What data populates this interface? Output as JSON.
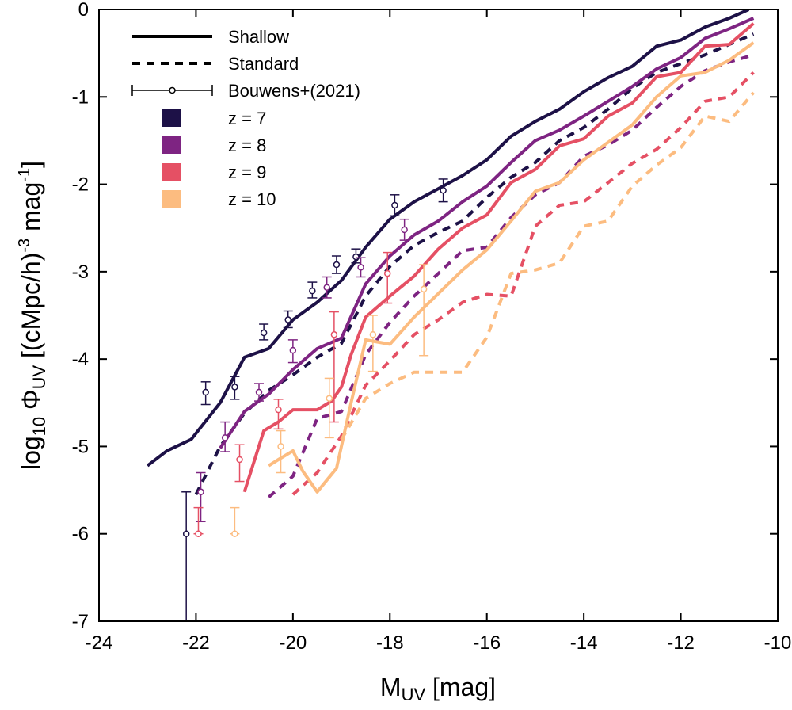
{
  "chart_data": {
    "type": "line",
    "xlabel": "M_UV [mag]",
    "xlabel_parts": {
      "base": "M",
      "sub": "UV",
      "rest": " [mag]"
    },
    "ylabel": "log10 Φ_UV [(cMpc/h)^-3 mag^-1]",
    "ylabel_parts": {
      "log": "log",
      "log_sub": "10",
      "phi": " Φ",
      "phi_sub": "UV",
      "paren": " [(cMpc/h)",
      "exp1": "-3",
      "mag": " mag",
      "exp2": "-1",
      "close": "]"
    },
    "xlim": [
      -24,
      -10
    ],
    "ylim": [
      -7,
      0
    ],
    "xticks": [
      -24,
      -22,
      -20,
      -18,
      -16,
      -14,
      -12,
      -10
    ],
    "yticks": [
      0,
      -1,
      -2,
      -3,
      -4,
      -5,
      -6,
      -7
    ],
    "grid": false,
    "legend": {
      "placement": "top-left",
      "styles": [
        {
          "label": "Shallow",
          "dash": "solid"
        },
        {
          "label": "Standard",
          "dash": "dashed"
        },
        {
          "label": "Bouwens+(2021)",
          "dash": "errorbar"
        }
      ],
      "redshifts": [
        {
          "label": "z = 7",
          "color": "#1d1147"
        },
        {
          "label": "z = 8",
          "color": "#7e2482"
        },
        {
          "label": "z = 9",
          "color": "#e55064"
        },
        {
          "label": "z = 10",
          "color": "#fcbc80"
        }
      ]
    },
    "series": [
      {
        "z": 7,
        "style": "shallow",
        "color": "#1d1147",
        "x": [
          -23,
          -22.6,
          -22.1,
          -21.5,
          -21,
          -20.5,
          -20,
          -19.5,
          -19,
          -18.5,
          -18,
          -17.5,
          -17,
          -16.5,
          -16,
          -15.5,
          -15,
          -14.5,
          -14,
          -13.5,
          -13,
          -12.5,
          -12,
          -11.5,
          -11,
          -10.6
        ],
        "y": [
          -5.22,
          -5.05,
          -4.92,
          -4.5,
          -3.98,
          -3.88,
          -3.55,
          -3.35,
          -3.1,
          -2.72,
          -2.4,
          -2.2,
          -2.05,
          -1.9,
          -1.72,
          -1.45,
          -1.28,
          -1.14,
          -0.94,
          -0.78,
          -0.65,
          -0.42,
          -0.35,
          -0.2,
          -0.1,
          0.0
        ]
      },
      {
        "z": 8,
        "style": "shallow",
        "color": "#7e2482",
        "x": [
          -21.5,
          -21,
          -20.5,
          -20,
          -19.5,
          -19,
          -18.5,
          -18,
          -17.5,
          -17,
          -16.5,
          -16,
          -15.5,
          -15,
          -14.5,
          -14,
          -13.5,
          -13,
          -12.5,
          -12,
          -11.5,
          -11,
          -10.5
        ],
        "y": [
          -5.02,
          -4.6,
          -4.4,
          -4.12,
          -3.88,
          -3.76,
          -3.14,
          -2.82,
          -2.58,
          -2.42,
          -2.2,
          -2.02,
          -1.75,
          -1.5,
          -1.38,
          -1.22,
          -1.05,
          -0.88,
          -0.68,
          -0.55,
          -0.33,
          -0.22,
          -0.1
        ]
      },
      {
        "z": 9,
        "style": "shallow",
        "color": "#e55064",
        "x": [
          -21,
          -20.6,
          -20.3,
          -20,
          -19.8,
          -19.5,
          -19.2,
          -19,
          -18.8,
          -18.5,
          -18,
          -17.5,
          -17,
          -16.5,
          -16,
          -15.5,
          -15,
          -14.5,
          -14,
          -13.5,
          -13,
          -12.5,
          -12,
          -11.5,
          -11,
          -10.5
        ],
        "y": [
          -5.52,
          -4.82,
          -4.72,
          -4.58,
          -4.58,
          -4.58,
          -4.48,
          -4.32,
          -3.95,
          -3.52,
          -3.28,
          -3.05,
          -2.74,
          -2.5,
          -2.35,
          -1.98,
          -1.83,
          -1.56,
          -1.48,
          -1.22,
          -1.07,
          -0.77,
          -0.72,
          -0.42,
          -0.4,
          -0.16
        ]
      },
      {
        "z": 10,
        "style": "shallow",
        "color": "#fcbc80",
        "x": [
          -20.5,
          -20.3,
          -20,
          -19.8,
          -19.5,
          -19.1,
          -18.8,
          -18.5,
          -18,
          -17.5,
          -17,
          -16.5,
          -16,
          -15.5,
          -15,
          -14.5,
          -14,
          -13.5,
          -13,
          -12.5,
          -12,
          -11.5,
          -11,
          -10.5
        ],
        "y": [
          -5.22,
          -5.15,
          -5.05,
          -5.28,
          -5.52,
          -5.25,
          -4.5,
          -3.78,
          -3.83,
          -3.52,
          -3.25,
          -2.98,
          -2.75,
          -2.42,
          -2.08,
          -1.98,
          -1.72,
          -1.52,
          -1.32,
          -1.0,
          -0.76,
          -0.72,
          -0.58,
          -0.38
        ]
      },
      {
        "z": 7,
        "style": "standard",
        "color": "#1d1147",
        "x": [
          -22,
          -21.5,
          -21,
          -20.5,
          -20,
          -19.5,
          -19,
          -18.5,
          -18,
          -17.5,
          -17,
          -16.5,
          -16,
          -15.5,
          -15,
          -14.5,
          -14,
          -13.5,
          -13,
          -12.5,
          -12,
          -11.5,
          -11,
          -10.5
        ],
        "y": [
          -5.55,
          -5.0,
          -4.62,
          -4.36,
          -4.18,
          -3.98,
          -3.82,
          -3.28,
          -2.94,
          -2.7,
          -2.55,
          -2.42,
          -2.15,
          -1.92,
          -1.75,
          -1.5,
          -1.35,
          -1.14,
          -0.9,
          -0.72,
          -0.62,
          -0.52,
          -0.4,
          -0.28
        ]
      },
      {
        "z": 8,
        "style": "standard",
        "color": "#7e2482",
        "x": [
          -20.5,
          -20,
          -19.5,
          -19,
          -18.5,
          -18,
          -17.5,
          -17,
          -16.5,
          -16,
          -15.5,
          -15,
          -14.5,
          -14,
          -13.5,
          -13,
          -12.5,
          -12,
          -11.5,
          -11,
          -10.5
        ],
        "y": [
          -5.58,
          -5.34,
          -4.68,
          -4.6,
          -3.95,
          -3.58,
          -3.28,
          -3.02,
          -2.76,
          -2.72,
          -2.38,
          -2.12,
          -1.98,
          -1.68,
          -1.55,
          -1.38,
          -1.12,
          -0.88,
          -0.7,
          -0.6,
          -0.52
        ]
      },
      {
        "z": 9,
        "style": "standard",
        "color": "#e55064",
        "x": [
          -20,
          -19.5,
          -19,
          -18.5,
          -18,
          -17.5,
          -17,
          -16.5,
          -16,
          -15.5,
          -15,
          -14.5,
          -14,
          -13.5,
          -13,
          -12.5,
          -12,
          -11.5,
          -11,
          -10.5
        ],
        "y": [
          -5.55,
          -5.3,
          -4.88,
          -4.3,
          -4.02,
          -3.72,
          -3.55,
          -3.35,
          -3.26,
          -3.28,
          -2.48,
          -2.24,
          -2.2,
          -1.98,
          -1.76,
          -1.6,
          -1.35,
          -1.05,
          -1.0,
          -0.72
        ]
      },
      {
        "z": 10,
        "style": "standard",
        "color": "#fcbc80",
        "x": [
          -19,
          -18.5,
          -18,
          -17.5,
          -17,
          -16.5,
          -16,
          -15.5,
          -15,
          -14.5,
          -14,
          -13.5,
          -13,
          -12.5,
          -12,
          -11.5,
          -11,
          -10.5
        ],
        "y": [
          -4.92,
          -4.45,
          -4.28,
          -4.15,
          -4.15,
          -4.15,
          -3.75,
          -3.02,
          -2.98,
          -2.9,
          -2.48,
          -2.42,
          -2.02,
          -1.78,
          -1.58,
          -1.22,
          -1.28,
          -0.95
        ]
      }
    ],
    "observations": [
      {
        "z": 7,
        "color": "#1d1147",
        "points": [
          {
            "x": -22.2,
            "y": -6.0,
            "lo": -7.2,
            "hi": -5.52
          },
          {
            "x": -21.8,
            "y": -4.38,
            "lo": -4.52,
            "hi": -4.26
          },
          {
            "x": -21.2,
            "y": -4.32,
            "lo": -4.46,
            "hi": -4.2
          },
          {
            "x": -20.6,
            "y": -3.7,
            "lo": -3.78,
            "hi": -3.6
          },
          {
            "x": -20.1,
            "y": -3.55,
            "lo": -3.64,
            "hi": -3.45
          },
          {
            "x": -19.6,
            "y": -3.22,
            "lo": -3.3,
            "hi": -3.12
          },
          {
            "x": -19.1,
            "y": -2.92,
            "lo": -3.02,
            "hi": -2.82
          },
          {
            "x": -18.7,
            "y": -2.83,
            "lo": -2.9,
            "hi": -2.74
          },
          {
            "x": -17.9,
            "y": -2.24,
            "lo": -2.36,
            "hi": -2.12
          },
          {
            "x": -16.9,
            "y": -2.07,
            "lo": -2.2,
            "hi": -1.94
          }
        ]
      },
      {
        "z": 8,
        "color": "#7e2482",
        "points": [
          {
            "x": -21.9,
            "y": -5.52,
            "lo": -5.86,
            "hi": -5.3
          },
          {
            "x": -21.4,
            "y": -4.9,
            "lo": -5.06,
            "hi": -4.72
          },
          {
            "x": -20.7,
            "y": -4.38,
            "lo": -4.48,
            "hi": -4.28
          },
          {
            "x": -20.0,
            "y": -3.9,
            "lo": -4.04,
            "hi": -3.78
          },
          {
            "x": -19.3,
            "y": -3.18,
            "lo": -3.3,
            "hi": -3.06
          },
          {
            "x": -18.6,
            "y": -2.95,
            "lo": -3.06,
            "hi": -2.84
          },
          {
            "x": -17.7,
            "y": -2.52,
            "lo": -2.64,
            "hi": -2.4
          }
        ]
      },
      {
        "z": 9,
        "color": "#e55064",
        "points": [
          {
            "x": -21.95,
            "y": -6.0,
            "lo": -6.0,
            "hi": -5.7
          },
          {
            "x": -21.1,
            "y": -5.15,
            "lo": -5.4,
            "hi": -4.98
          },
          {
            "x": -20.3,
            "y": -4.58,
            "lo": -4.8,
            "hi": -4.46
          },
          {
            "x": -19.15,
            "y": -3.72,
            "lo": -4.72,
            "hi": -3.46
          },
          {
            "x": -18.05,
            "y": -3.02,
            "lo": -3.36,
            "hi": -2.78
          }
        ]
      },
      {
        "z": 10,
        "color": "#fcbc80",
        "points": [
          {
            "x": -21.2,
            "y": -6.0,
            "lo": -6.0,
            "hi": -5.7
          },
          {
            "x": -20.25,
            "y": -5.0,
            "lo": -5.3,
            "hi": -4.82
          },
          {
            "x": -19.25,
            "y": -4.45,
            "lo": -4.9,
            "hi": -4.22
          },
          {
            "x": -18.35,
            "y": -3.72,
            "lo": -4.14,
            "hi": -3.5
          },
          {
            "x": -17.3,
            "y": -3.2,
            "lo": -3.96,
            "hi": -2.92
          }
        ]
      }
    ]
  }
}
